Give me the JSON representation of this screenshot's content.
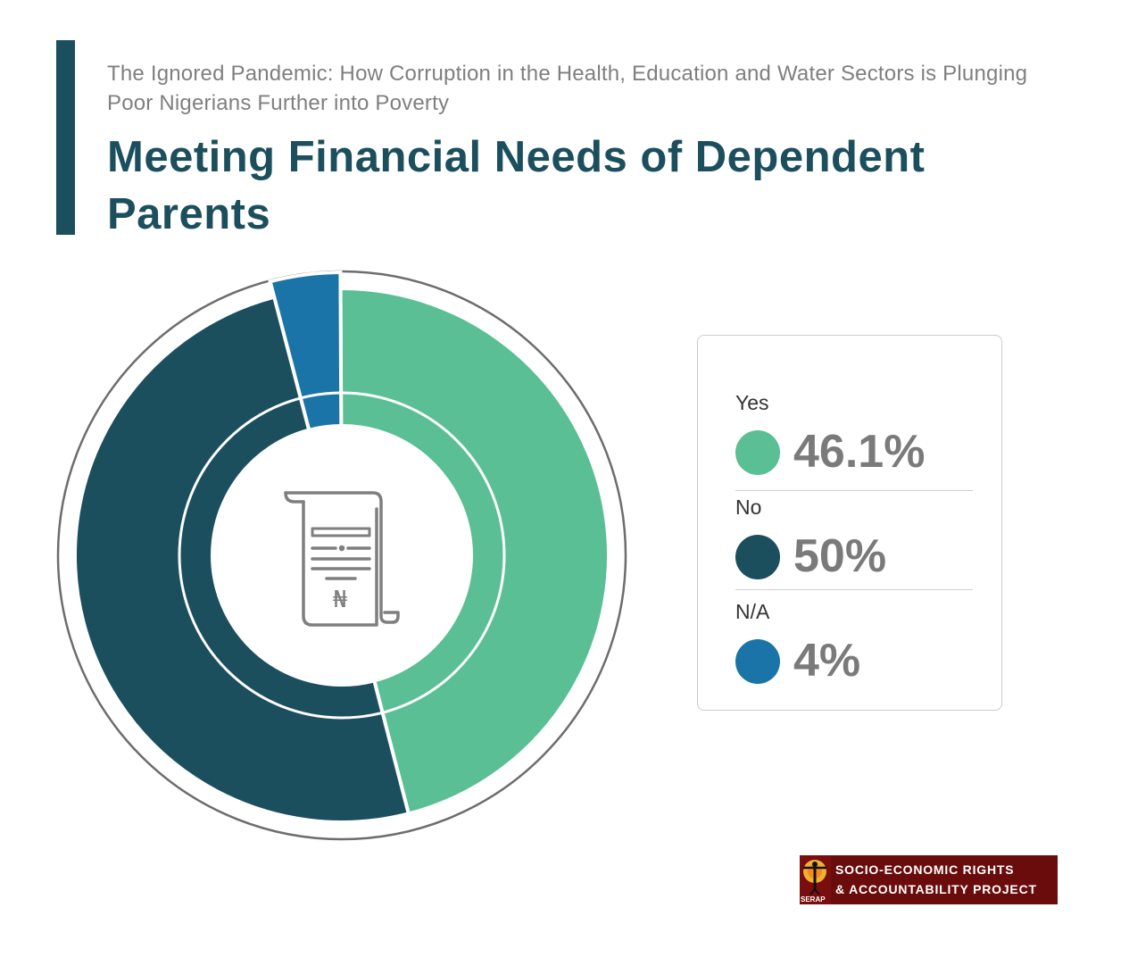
{
  "header": {
    "subtitle": "The Ignored Pandemic: How Corruption in the Health, Education and Water Sectors is Plunging Poor Nigerians Further into Poverty",
    "title": "Meeting Financial Needs of Dependent Parents"
  },
  "chart_data": {
    "type": "pie",
    "variant": "donut",
    "title": "Meeting Financial Needs of Dependent Parents",
    "slices": [
      {
        "label": "Yes",
        "value": 46.1,
        "display": "46.1%",
        "color": "#5abf95"
      },
      {
        "label": "No",
        "value": 50,
        "display": "50%",
        "color": "#1c4f5e"
      },
      {
        "label": "N/A",
        "value": 4,
        "display": "4%",
        "color": "#1a74a8"
      }
    ],
    "center_icon": "receipt-naira-icon",
    "center_symbol": "₦",
    "legend_position": "right"
  },
  "logo": {
    "line1": "SOCIO-ECONOMIC RIGHTS",
    "line2": "& ACCOUNTABILITY PROJECT",
    "abbr": "SERAP"
  }
}
